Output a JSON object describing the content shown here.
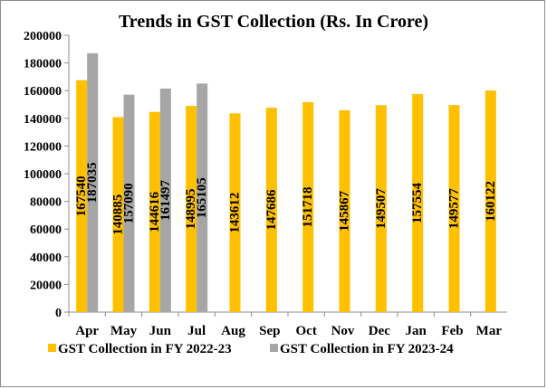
{
  "chart_data": {
    "type": "bar",
    "title": "Trends in GST Collection (Rs. In Crore)",
    "xlabel": "",
    "ylabel": "",
    "ylim": [
      0,
      200000
    ],
    "yticks": [
      0,
      20000,
      40000,
      60000,
      80000,
      100000,
      120000,
      140000,
      160000,
      180000,
      200000
    ],
    "grid": false,
    "legend": "bottom",
    "categories": [
      "Apr",
      "May",
      "Jun",
      "Jul",
      "Aug",
      "Sep",
      "Oct",
      "Nov",
      "Dec",
      "Jan",
      "Feb",
      "Mar"
    ],
    "series": [
      {
        "name": "GST Collection in FY 2022-23",
        "color": "#ffc000",
        "values": [
          167540,
          140885,
          144616,
          148995,
          143612,
          147686,
          151718,
          145867,
          149507,
          157554,
          149577,
          160122
        ]
      },
      {
        "name": "GST Collection in FY 2023-24",
        "color": "#a6a6a6",
        "values": [
          187035,
          157090,
          161497,
          165105,
          null,
          null,
          null,
          null,
          null,
          null,
          null,
          null
        ]
      }
    ]
  }
}
